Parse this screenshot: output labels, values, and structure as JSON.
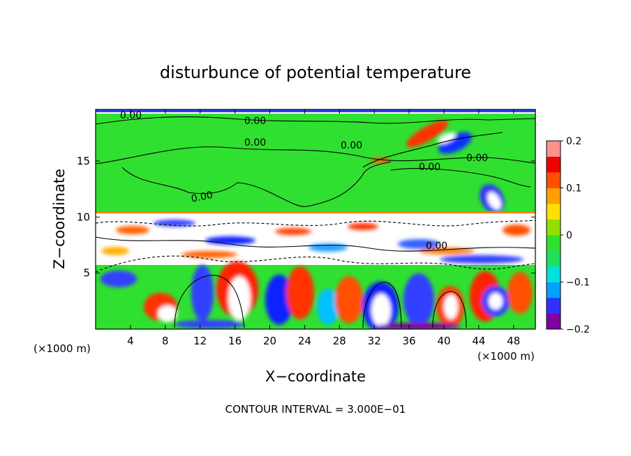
{
  "chart_data": {
    "type": "heatmap",
    "title": "disturbunce of potential temperature",
    "xlabel": "X−coordinate",
    "ylabel": "Z−coordinate",
    "x_unit_left": "(×1000 m)",
    "x_unit_right": "(×1000 m)",
    "xlim": [
      0,
      50.5
    ],
    "ylim": [
      0,
      19.6
    ],
    "x_ticks": [
      4,
      8,
      12,
      16,
      20,
      24,
      28,
      32,
      36,
      40,
      44,
      48
    ],
    "y_ticks": [
      5,
      10,
      15
    ],
    "contour_labels": [
      "0.00",
      "0.00",
      "0.00",
      "0.00",
      "0.00",
      "0.00",
      "0.00",
      "0.00"
    ],
    "footer": "CONTOUR INTERVAL = 3.000E−01",
    "colorbar": {
      "min": -0.2,
      "max": 0.2,
      "tick_labels": [
        "0.2",
        "0.1",
        "0",
        "−0.1",
        "−0.2"
      ],
      "tick_values": [
        0.2,
        0.1,
        0,
        -0.1,
        -0.2
      ],
      "colors": [
        "#8000a0",
        "#3030ff",
        "#00a0ff",
        "#00e0e0",
        "#20e060",
        "#30e030",
        "#90e000",
        "#ffe000",
        "#ffa000",
        "#ff5000",
        "#f00000",
        "#ff9090"
      ]
    },
    "grid": false,
    "colors": {
      "background_field": "#30e030",
      "upper_band": "#ffffff",
      "lower_field": "#30e030"
    }
  }
}
